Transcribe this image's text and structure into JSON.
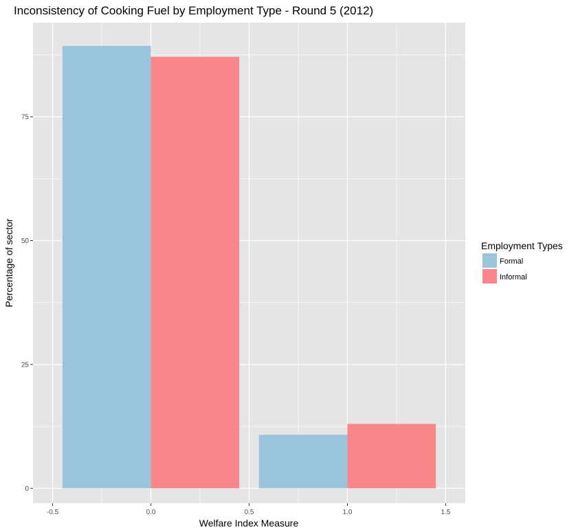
{
  "chart_data": {
    "type": "bar",
    "title": "Inconsistency of Cooking Fuel by Employment Type - Round 5 (2012)",
    "xlabel": "Welfare Index Measure",
    "ylabel": "Percentage of sector",
    "x": [
      0,
      1
    ],
    "xlim": [
      -0.6,
      1.6
    ],
    "ylim": [
      -3,
      94
    ],
    "x_ticks": [
      -0.5,
      0.0,
      0.5,
      1.0,
      1.5
    ],
    "x_tick_labels": [
      "-0.5",
      "0.0",
      "0.5",
      "1.0",
      "1.5"
    ],
    "y_ticks": [
      0,
      25,
      50,
      75
    ],
    "y_tick_labels": [
      "0",
      "25",
      "50",
      "75"
    ],
    "grid": true,
    "legend_position": "right",
    "legend_title": "Employment Types",
    "series": [
      {
        "name": "Formal",
        "values": [
          89.3,
          10.8
        ],
        "color": "#99c4dc"
      },
      {
        "name": "Informal",
        "values": [
          87.1,
          13.0
        ],
        "color": "#f8868a"
      }
    ],
    "panel_color": "#e5e5e5",
    "grid_color": "#ffffff"
  }
}
